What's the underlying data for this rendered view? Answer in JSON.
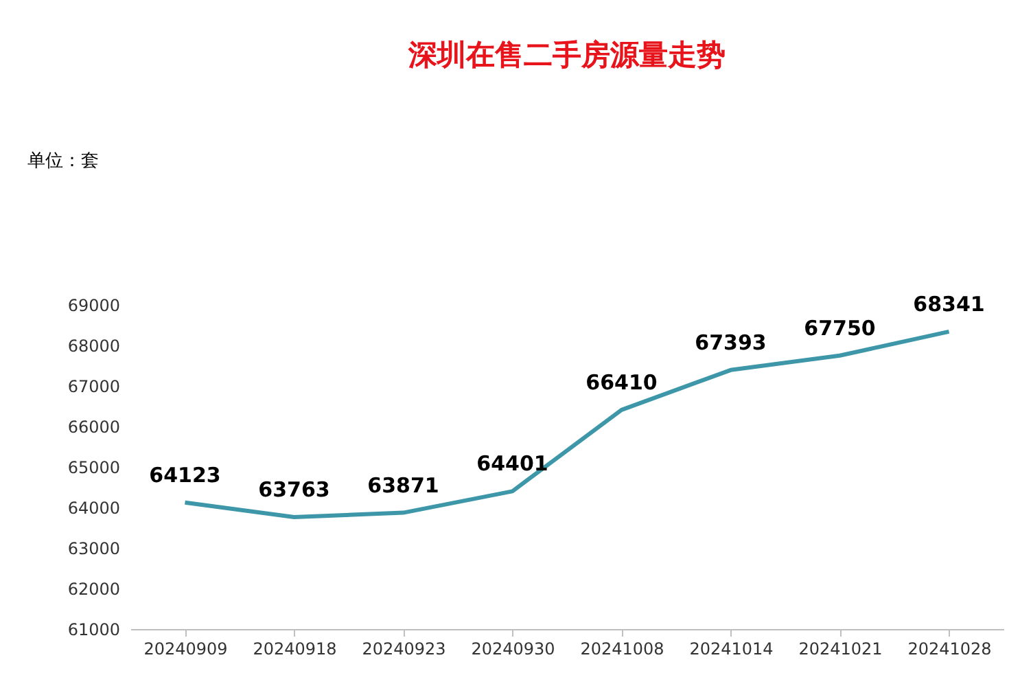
{
  "chart_data": {
    "type": "line",
    "title": "深圳在售二手房源量走势",
    "annotations": [
      "单位：套"
    ],
    "categories": [
      "20240909",
      "20240918",
      "20240923",
      "20240930",
      "20241008",
      "20241014",
      "20241021",
      "20241028"
    ],
    "series": [
      {
        "color": "#3d97a8",
        "values": [
          64123,
          63763,
          63871,
          64401,
          66410,
          67393,
          67750,
          68341
        ]
      }
    ],
    "ylim": [
      61000,
      69000
    ],
    "yticks": [
      61000,
      62000,
      63000,
      64000,
      65000,
      66000,
      67000,
      68000,
      69000
    ],
    "grid": false,
    "marker": "none",
    "line_style": "solid",
    "data_labels": true
  }
}
